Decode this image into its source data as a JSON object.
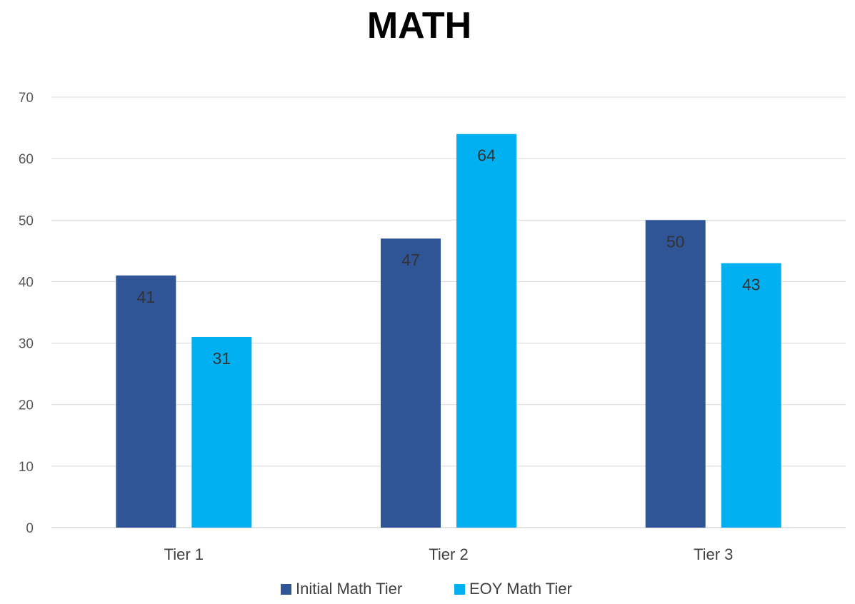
{
  "chart_data": {
    "type": "bar",
    "title": "MATH",
    "xlabel": "",
    "ylabel": "",
    "categories": [
      "Tier 1",
      "Tier 2",
      "Tier 3"
    ],
    "series": [
      {
        "name": "Initial Math Tier",
        "values": [
          41,
          47,
          50
        ],
        "color": "#2f5597"
      },
      {
        "name": "EOY Math Tier",
        "values": [
          31,
          64,
          43
        ],
        "color": "#00b0f0"
      }
    ],
    "ylim": [
      0,
      70
    ],
    "yticks": [
      0,
      10,
      20,
      30,
      40,
      50,
      60,
      70
    ],
    "grid": true,
    "legend_position": "bottom",
    "data_labels": true
  }
}
